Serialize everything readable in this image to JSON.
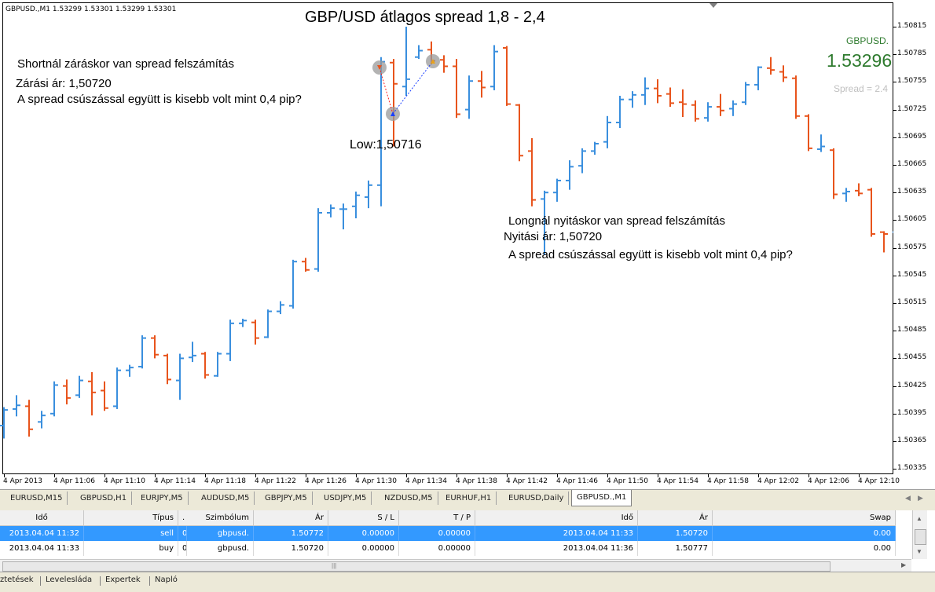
{
  "chart": {
    "header": "GBPUSD.,M1  1.53299 1.53301 1.53299 1.53301",
    "title": "GBP/USD átlagos spread 1,8 - 2,4",
    "symbol": "GBPUSD.",
    "bid": "1.53296",
    "spread": "Spread = 2.4",
    "bull_color": "#3a8fde",
    "bear_color": "#e8541c",
    "annotation_short": {
      "line1": "Shortnál záráskor van spread felszámítás",
      "line2": "Zárási ár: 1,50720",
      "line3": "A spread csúszással együtt is kisebb volt mint 0,4 pip?"
    },
    "annotation_low": "Low:1,50716",
    "annotation_long": {
      "line1": "Longnál nyitáskor van spread felszámítás",
      "line2": "Nyitási ár: 1,50720",
      "line3": "A spread csúszással együtt is kisebb volt mint 0,4 pip?"
    }
  },
  "chart_data": {
    "type": "ohlc",
    "price_axis": [
      "1.50815",
      "1.50785",
      "1.50755",
      "1.50725",
      "1.50695",
      "1.50665",
      "1.50635",
      "1.50605",
      "1.50575",
      "1.50545",
      "1.50515",
      "1.50485",
      "1.50455",
      "1.50425",
      "1.50395",
      "1.50365",
      "1.50335"
    ],
    "time_axis": [
      "4 Apr 2013",
      "4 Apr 11:06",
      "4 Apr 11:10",
      "4 Apr 11:14",
      "4 Apr 11:18",
      "4 Apr 11:22",
      "4 Apr 11:26",
      "4 Apr 11:30",
      "4 Apr 11:34",
      "4 Apr 11:38",
      "4 Apr 11:42",
      "4 Apr 11:46",
      "4 Apr 11:50",
      "4 Apr 11:54",
      "4 Apr 11:58",
      "4 Apr 12:02",
      "4 Apr 12:06",
      "4 Apr 12:10"
    ],
    "bars": [
      [
        1.50382,
        1.50402,
        1.50368,
        1.50399
      ],
      [
        1.504,
        1.50415,
        1.50392,
        1.50404
      ],
      [
        1.50403,
        1.5041,
        1.5037,
        1.50378
      ],
      [
        1.50386,
        1.50398,
        1.50379,
        1.50393
      ],
      [
        1.50395,
        1.5043,
        1.50392,
        1.50426
      ],
      [
        1.50425,
        1.50432,
        1.50405,
        1.50412
      ],
      [
        1.50415,
        1.50436,
        1.50412,
        1.50431
      ],
      [
        1.5043,
        1.5044,
        1.50393,
        1.50418
      ],
      [
        1.5042,
        1.5043,
        1.50398,
        1.50401
      ],
      [
        1.50403,
        1.50445,
        1.504,
        1.50442
      ],
      [
        1.50442,
        1.50448,
        1.50435,
        1.50445
      ],
      [
        1.50446,
        1.5048,
        1.50444,
        1.50477
      ],
      [
        1.50477,
        1.5048,
        1.50455,
        1.50459
      ],
      [
        1.50458,
        1.5046,
        1.50427,
        1.50432
      ],
      [
        1.50431,
        1.5046,
        1.5041,
        1.50455
      ],
      [
        1.50456,
        1.50473,
        1.50451,
        1.50458
      ],
      [
        1.5046,
        1.50462,
        1.50433,
        1.50437
      ],
      [
        1.50436,
        1.50462,
        1.50435,
        1.5046
      ],
      [
        1.5046,
        1.50497,
        1.50452,
        1.50493
      ],
      [
        1.50493,
        1.50498,
        1.50489,
        1.50496
      ],
      [
        1.50494,
        1.50497,
        1.5047,
        1.50477
      ],
      [
        1.50478,
        1.50508,
        1.50477,
        1.50506
      ],
      [
        1.50506,
        1.50517,
        1.50503,
        1.50513
      ],
      [
        1.50512,
        1.50562,
        1.50509,
        1.5056
      ],
      [
        1.5056,
        1.50564,
        1.50549,
        1.50551
      ],
      [
        1.50552,
        1.50618,
        1.50549,
        1.50613
      ],
      [
        1.50613,
        1.50622,
        1.50608,
        1.50618
      ],
      [
        1.50617,
        1.50623,
        1.50595,
        1.50617
      ],
      [
        1.5062,
        1.50636,
        1.50607,
        1.50632
      ],
      [
        1.5063,
        1.50648,
        1.50618,
        1.50643
      ],
      [
        1.50643,
        1.50782,
        1.5062,
        1.50777
      ],
      [
        1.50776,
        1.5078,
        1.50685,
        1.50753
      ],
      [
        1.5075,
        1.50815,
        1.5074,
        1.50758
      ],
      [
        1.50782,
        1.50795,
        1.5078,
        1.50789
      ],
      [
        1.5079,
        1.50799,
        1.50774,
        1.50778
      ],
      [
        1.50779,
        1.50784,
        1.50765,
        1.50772
      ],
      [
        1.50772,
        1.5078,
        1.50716,
        1.5072
      ],
      [
        1.50725,
        1.50762,
        1.50715,
        1.50756
      ],
      [
        1.50756,
        1.50767,
        1.50738,
        1.50749
      ],
      [
        1.5075,
        1.50795,
        1.50746,
        1.50788
      ],
      [
        1.50792,
        1.50794,
        1.50729,
        1.50731
      ],
      [
        1.5073,
        1.50731,
        1.50669,
        1.50675
      ],
      [
        1.5068,
        1.50694,
        1.5062,
        1.50627
      ],
      [
        1.50628,
        1.50637,
        1.50567,
        1.50635
      ],
      [
        1.50635,
        1.5065,
        1.50625,
        1.50648
      ],
      [
        1.50648,
        1.5067,
        1.50638,
        1.50663
      ],
      [
        1.50664,
        1.50683,
        1.50656,
        1.5068
      ],
      [
        1.5068,
        1.5069,
        1.50676,
        1.50688
      ],
      [
        1.5069,
        1.50718,
        1.50683,
        1.50711
      ],
      [
        1.50711,
        1.5074,
        1.50705,
        1.50736
      ],
      [
        1.50736,
        1.50745,
        1.50727,
        1.50741
      ],
      [
        1.50741,
        1.5076,
        1.5073,
        1.50748
      ],
      [
        1.50748,
        1.50758,
        1.50732,
        1.5074
      ],
      [
        1.50742,
        1.50749,
        1.50728,
        1.50732
      ],
      [
        1.50733,
        1.50747,
        1.50717,
        1.50731
      ],
      [
        1.5073,
        1.50735,
        1.50712,
        1.50715
      ],
      [
        1.50716,
        1.50733,
        1.50712,
        1.50728
      ],
      [
        1.50728,
        1.50742,
        1.50718,
        1.50724
      ],
      [
        1.50726,
        1.50735,
        1.50718,
        1.50731
      ],
      [
        1.50733,
        1.50755,
        1.5073,
        1.50752
      ],
      [
        1.50752,
        1.50772,
        1.50746,
        1.50771
      ],
      [
        1.5077,
        1.50782,
        1.50763,
        1.50768
      ],
      [
        1.50766,
        1.50773,
        1.50755,
        1.5076
      ],
      [
        1.50759,
        1.50762,
        1.50715,
        1.50718
      ],
      [
        1.50718,
        1.5072,
        1.5068,
        1.50683
      ],
      [
        1.50682,
        1.50698,
        1.50679,
        1.50685
      ],
      [
        1.50681,
        1.50683,
        1.50628,
        1.50633
      ],
      [
        1.50634,
        1.5064,
        1.50625,
        1.50636
      ],
      [
        1.50637,
        1.50645,
        1.50631,
        1.50634
      ],
      [
        1.50638,
        1.5064,
        1.50587,
        1.5059
      ],
      [
        1.50592,
        1.50593,
        1.5057,
        1.5059
      ],
      [
        1.50592,
        1.50598,
        1.50585,
        1.50595
      ],
      [
        1.50596,
        1.50616,
        1.50593,
        1.5061
      ],
      [
        1.5061,
        1.5064,
        1.50605,
        1.50637
      ],
      [
        1.50637,
        1.50655,
        1.50633,
        1.50652
      ],
      [
        1.50652,
        1.5067,
        1.50643,
        1.5066
      ],
      [
        1.5066,
        1.50675,
        1.50651,
        1.50672
      ],
      [
        1.50672,
        1.50684,
        1.50663,
        1.5068
      ],
      [
        1.5068,
        1.50692,
        1.50671,
        1.50681
      ],
      [
        1.50684,
        1.5069,
        1.5067,
        1.50675
      ]
    ]
  },
  "symbol_tabs": [
    "EURUSD,M15",
    "GBPUSD,H1",
    "EURJPY,M5",
    "AUDUSD,M5",
    "GBPJPY,M5",
    "USDJPY,M5",
    "NZDUSD,M5",
    "EURHUF,H1",
    "EURUSD,Daily",
    "GBPUSD.,M1"
  ],
  "table": {
    "headers": [
      "Idő",
      "Típus",
      ".",
      "Szimbólum",
      "Ár",
      "S / L",
      "T / P",
      "Idő",
      "Ár",
      "Swap"
    ],
    "rows": [
      [
        "2013.04.04 11:32",
        "sell",
        "0...",
        "gbpusd.",
        "1.50772",
        "0.00000",
        "0.00000",
        "2013.04.04 11:33",
        "1.50720",
        "0.00"
      ],
      [
        "2013.04.04 11:33",
        "buy",
        "0...",
        "gbpusd.",
        "1.50720",
        "0.00000",
        "0.00000",
        "2013.04.04 11:36",
        "1.50777",
        "0.00"
      ]
    ]
  },
  "bottom_tabs": [
    "ztetések",
    "Levelesláda",
    "Expertek",
    "Napló"
  ]
}
